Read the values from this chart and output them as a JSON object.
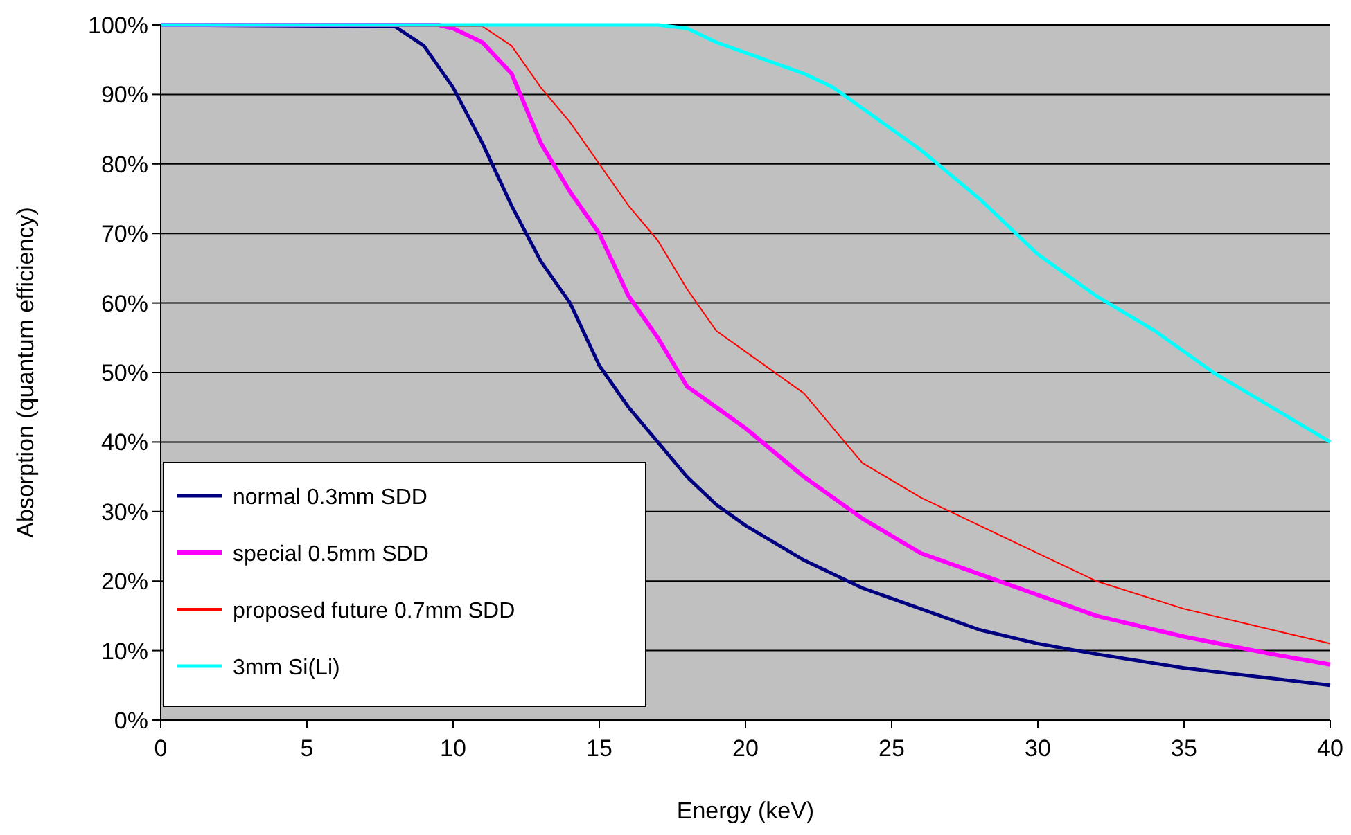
{
  "chart_data": {
    "type": "line",
    "xlabel": "Energy (keV)",
    "ylabel": "Absorption (quantum efficiency)",
    "xlim": [
      0,
      40
    ],
    "xticks": [
      0,
      5,
      10,
      15,
      20,
      25,
      30,
      35,
      40
    ],
    "ylim": [
      0,
      100
    ],
    "yticks": [
      {
        "value": 0,
        "label": "0%"
      },
      {
        "value": 10,
        "label": "10%"
      },
      {
        "value": 20,
        "label": "20%"
      },
      {
        "value": 30,
        "label": "30%"
      },
      {
        "value": 40,
        "label": "40%"
      },
      {
        "value": 50,
        "label": "50%"
      },
      {
        "value": 60,
        "label": "60%"
      },
      {
        "value": 70,
        "label": "70%"
      },
      {
        "value": 80,
        "label": "80%"
      },
      {
        "value": 90,
        "label": "90%"
      },
      {
        "value": 100,
        "label": "100%"
      }
    ],
    "grid": "y",
    "legend": "bottom left",
    "marker": "none",
    "line_style": "solid",
    "series": [
      {
        "name": "normal 0.3mm SDD",
        "color": "#000080",
        "x": [
          0,
          8,
          9,
          10,
          11,
          12,
          13,
          14,
          15,
          16,
          17,
          18,
          19,
          20,
          22,
          24,
          26,
          28,
          30,
          32,
          35,
          38,
          40
        ],
        "values": [
          100,
          99.8,
          97,
          91,
          83,
          74,
          66,
          60,
          51,
          45,
          40,
          35,
          31,
          28,
          23,
          19,
          16,
          13,
          11,
          9.5,
          7.5,
          6,
          5
        ]
      },
      {
        "name": "special 0.5mm SDD",
        "color": "#ff00ff",
        "x": [
          0,
          9.5,
          10,
          11,
          12,
          13,
          14,
          15,
          16,
          17,
          18,
          19,
          20,
          22,
          24,
          26,
          28,
          30,
          32,
          35,
          38,
          40
        ],
        "values": [
          100,
          100,
          99.5,
          97.5,
          93,
          83,
          76,
          70,
          61,
          55,
          48,
          45,
          42,
          35,
          29,
          24,
          21,
          18,
          15,
          12,
          9.5,
          8
        ]
      },
      {
        "name": "proposed future 0.7mm SDD",
        "color": "#ff0000",
        "x": [
          0,
          11,
          12,
          13,
          14,
          15,
          16,
          17,
          18,
          19,
          20,
          22,
          24,
          26,
          28,
          30,
          32,
          35,
          38,
          40
        ],
        "values": [
          100,
          99.8,
          97,
          91,
          86,
          80,
          74,
          69,
          62,
          56,
          53,
          47,
          37,
          32,
          28,
          24,
          20,
          16,
          13,
          11
        ]
      },
      {
        "name": "3mm Si(Li)",
        "color": "#00ffff",
        "x": [
          0,
          17,
          18,
          19,
          20,
          22,
          23,
          24,
          26,
          28,
          30,
          32,
          34,
          36,
          38,
          40
        ],
        "values": [
          100,
          100,
          99.5,
          97.5,
          96,
          93,
          91,
          88,
          82,
          75,
          67,
          61,
          56,
          50,
          45,
          40
        ]
      }
    ]
  }
}
